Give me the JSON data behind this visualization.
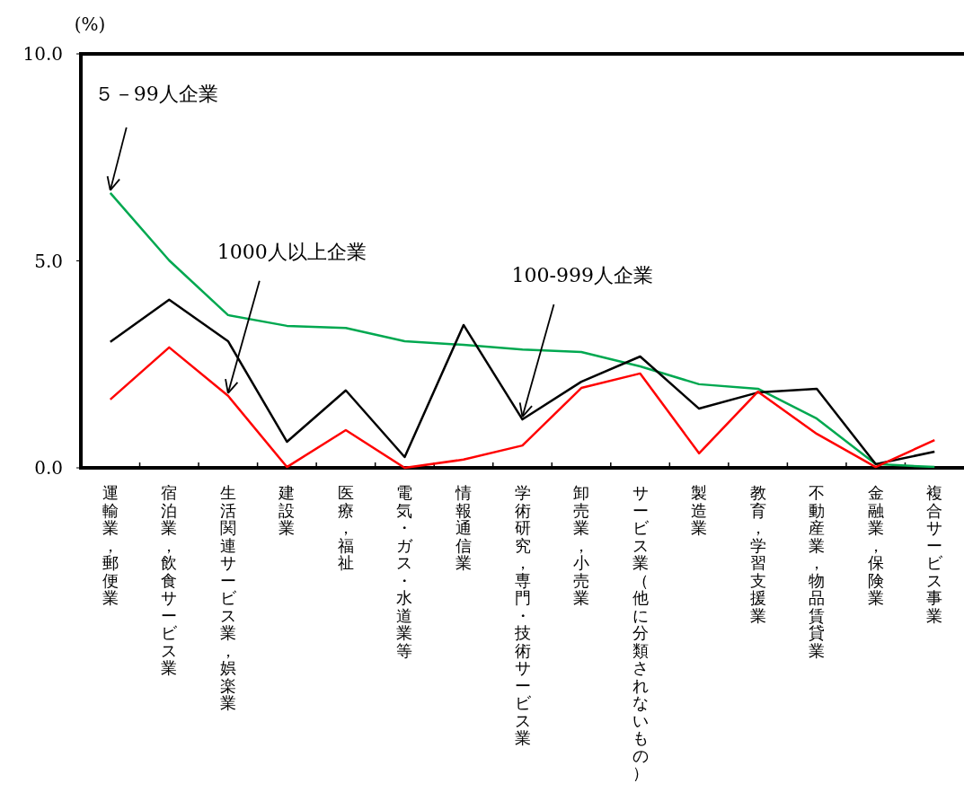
{
  "chart_data": {
    "type": "line",
    "ylabel": "(%)",
    "grid": false,
    "categories": [
      "運輸業，郵便業",
      "宿泊業，飲食サービス業",
      "生活関連サービス業，娯楽業",
      "建設業",
      "医療，福祉",
      "電気・ガス・水道業等",
      "情報通信業",
      "学術研究，専門・技術サービス業",
      "卸売業，小売業",
      "サービス業（他に分類されないもの）",
      "製造業",
      "教育，学習支援業",
      "不動産業，物品賃貸業",
      "金融業，保険業",
      "複合サービス事業"
    ],
    "ylim": [
      0,
      10
    ],
    "yticks": [
      {
        "value": 0,
        "label": "0.0"
      },
      {
        "value": 5,
        "label": "5.0"
      },
      {
        "value": 10,
        "label": "10.0"
      }
    ],
    "series": [
      {
        "color": "#00a850",
        "values": [
          6.64,
          5.01,
          3.69,
          3.43,
          3.38,
          3.06,
          2.97,
          2.86,
          2.8,
          2.45,
          2.02,
          1.91,
          1.19,
          0.09,
          0.02
        ]
      },
      {
        "color": "#000000",
        "values": [
          3.04,
          4.06,
          3.06,
          0.63,
          1.87,
          0.26,
          3.45,
          1.17,
          2.08,
          2.69,
          1.43,
          1.82,
          1.91,
          0.09,
          0.39
        ]
      },
      {
        "color": "#ff0000",
        "values": [
          1.65,
          2.91,
          1.74,
          0.02,
          0.91,
          0.0,
          0.2,
          0.54,
          1.93,
          2.28,
          0.35,
          1.84,
          0.82,
          0.02,
          0.67
        ]
      }
    ],
    "annotations": [
      {
        "text": "５－99人企業",
        "x": "運輸業，郵便業",
        "y": 6.64
      },
      {
        "text": "1000人以上企業",
        "x": "生活関連サービス業，娯楽業",
        "y": 1.74
      },
      {
        "text": "100-999人企業",
        "x": "学術研究，専門・技術サービス業",
        "y": 1.17
      }
    ]
  }
}
